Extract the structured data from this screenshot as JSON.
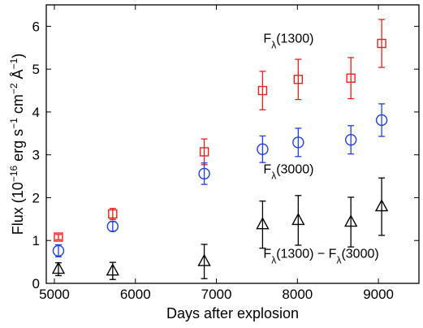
{
  "chart_data": {
    "type": "scatter",
    "title": "",
    "xlabel": "Days after explosion",
    "ylabel": {
      "prefix": "Flux (10",
      "exp1": "−16",
      "mid1": " erg s",
      "exp2": "−1",
      "mid2": " cm",
      "exp3": "−2",
      "mid3": " Å",
      "exp4": "−1",
      "suffix": ")"
    },
    "xlim": [
      4900,
      9500
    ],
    "ylim": [
      0,
      6.5
    ],
    "xticks": [
      5000,
      6000,
      7000,
      8000,
      9000
    ],
    "yticks": [
      0,
      1,
      2,
      3,
      4,
      5,
      6
    ],
    "xtick_labels": [
      "5000",
      "6000",
      "7000",
      "8000",
      "9000"
    ],
    "ytick_labels": [
      "0",
      "1",
      "2",
      "3",
      "4",
      "5",
      "6"
    ],
    "grid": false,
    "series": [
      {
        "marker": "square",
        "color": "#e8201d",
        "points": [
          {
            "x": 5050,
            "y": 1.08,
            "err": 0.06
          },
          {
            "x": 5720,
            "y": 1.62,
            "err": 0.13
          },
          {
            "x": 6850,
            "y": 3.07,
            "err": 0.3
          },
          {
            "x": 7570,
            "y": 4.5,
            "err": 0.45
          },
          {
            "x": 8010,
            "y": 4.76,
            "err": 0.47
          },
          {
            "x": 8660,
            "y": 4.79,
            "err": 0.48
          },
          {
            "x": 9040,
            "y": 5.6,
            "err": 0.56
          }
        ]
      },
      {
        "marker": "circle",
        "color": "#1f3fe0",
        "points": [
          {
            "x": 5050,
            "y": 0.76,
            "err": 0.14
          },
          {
            "x": 5720,
            "y": 1.33,
            "err": 0.11
          },
          {
            "x": 6850,
            "y": 2.56,
            "err": 0.25
          },
          {
            "x": 7570,
            "y": 3.13,
            "err": 0.31
          },
          {
            "x": 8010,
            "y": 3.29,
            "err": 0.33
          },
          {
            "x": 8660,
            "y": 3.35,
            "err": 0.33
          },
          {
            "x": 9040,
            "y": 3.81,
            "err": 0.38
          }
        ]
      },
      {
        "marker": "triangle",
        "color": "#000000",
        "points": [
          {
            "x": 5050,
            "y": 0.33,
            "err": 0.15
          },
          {
            "x": 5720,
            "y": 0.29,
            "err": 0.2
          },
          {
            "x": 6850,
            "y": 0.51,
            "err": 0.4
          },
          {
            "x": 7570,
            "y": 1.37,
            "err": 0.55
          },
          {
            "x": 8010,
            "y": 1.47,
            "err": 0.58
          },
          {
            "x": 8660,
            "y": 1.43,
            "err": 0.58
          },
          {
            "x": 9040,
            "y": 1.79,
            "err": 0.67
          }
        ]
      }
    ],
    "annotations": [
      {
        "name": "label-f1300",
        "base": "F",
        "sub": "λ",
        "rest": "(1300)",
        "x": 7580,
        "y": 5.62
      },
      {
        "name": "label-f3000",
        "base": "F",
        "sub": "λ",
        "rest": "(3000)",
        "x": 7580,
        "y": 2.57
      },
      {
        "name": "label-fdiff",
        "base": "F",
        "sub": "λ",
        "rest": "(1300) − ",
        "base2": "F",
        "sub2": "λ",
        "rest2": "(3000)",
        "x": 7580,
        "y": 0.6
      }
    ]
  }
}
